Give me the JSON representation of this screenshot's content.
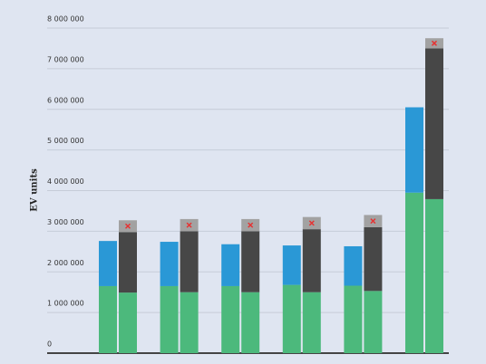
{
  "chart_data": {
    "type": "paired-stacked-bar",
    "y_label": "EV units",
    "categories": [
      null,
      null,
      null,
      null,
      null,
      null
    ],
    "series": [
      {
        "stack": "left",
        "color": "#4cb97c",
        "values": [
          1650000,
          1650000,
          1650000,
          1680000,
          1660000,
          3950000
        ]
      },
      {
        "stack": "left",
        "color": "#2a98d6",
        "values": [
          1110000,
          1090000,
          1030000,
          970000,
          970000,
          2100000
        ]
      },
      {
        "stack": "right",
        "color": "#4cb97c",
        "values": [
          1490000,
          1500000,
          1500000,
          1500000,
          1530000,
          3790000
        ]
      },
      {
        "stack": "right",
        "color": "#474747",
        "values": [
          1490000,
          1500000,
          1500000,
          1550000,
          1570000,
          3710000
        ]
      },
      {
        "stack": "right",
        "color": "#a2a2a2",
        "marker": "x",
        "marker_color": "#e53333",
        "values": [
          290000,
          300000,
          300000,
          300000,
          300000,
          250000
        ]
      }
    ],
    "ylim": [
      0,
      8000000
    ],
    "yticks": [
      {
        "value": 0,
        "label": "0"
      },
      {
        "value": 1000000,
        "label": "1 000 000"
      },
      {
        "value": 2000000,
        "label": "2 000 000"
      },
      {
        "value": 3000000,
        "label": "3 000 000"
      },
      {
        "value": 4000000,
        "label": "4 000 000"
      },
      {
        "value": 5000000,
        "label": "5 000 000"
      },
      {
        "value": 6000000,
        "label": "6 000 000"
      },
      {
        "value": 7000000,
        "label": "7 000 000"
      },
      {
        "value": 8000000,
        "label": "8 000 000"
      }
    ],
    "grid": true
  }
}
